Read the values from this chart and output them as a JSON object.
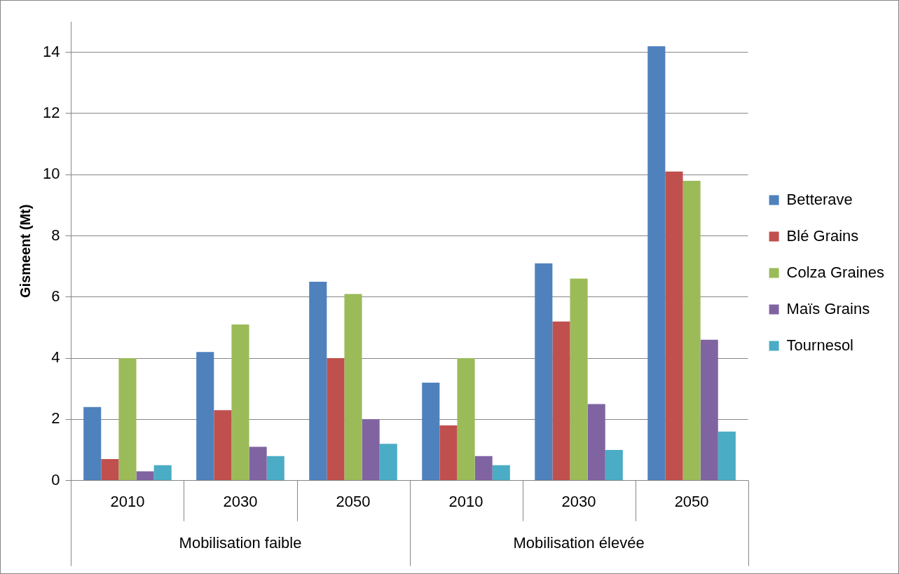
{
  "chart_data": {
    "type": "bar",
    "ylabel": "Gismeent (Mt)",
    "categories": [
      "2010",
      "2030",
      "2050",
      "2010",
      "2030",
      "2050"
    ],
    "annotations": [
      "Mobilisation faible",
      "Mobilisation élevée"
    ],
    "series": [
      {
        "name": "Betterave",
        "color": "#4f81bd",
        "values": [
          2.4,
          4.2,
          6.5,
          3.2,
          7.1,
          14.2
        ]
      },
      {
        "name": "Blé Grains",
        "color": "#c0504d",
        "values": [
          0.7,
          2.3,
          4.0,
          1.8,
          5.2,
          10.1
        ]
      },
      {
        "name": "Colza Graines",
        "color": "#9bbb59",
        "values": [
          4.0,
          5.1,
          6.1,
          4.0,
          6.6,
          9.8
        ]
      },
      {
        "name": "Maïs Grains",
        "color": "#8064a2",
        "values": [
          0.3,
          1.1,
          2.0,
          0.8,
          2.5,
          4.6
        ]
      },
      {
        "name": "Tournesol",
        "color": "#4bacc6",
        "values": [
          0.5,
          0.8,
          1.2,
          0.5,
          1.0,
          1.6
        ]
      }
    ],
    "ylim": [
      0,
      15
    ],
    "yticks": [
      0,
      2,
      4,
      6,
      8,
      10,
      12,
      14
    ],
    "grid": "y",
    "legend": "right"
  }
}
